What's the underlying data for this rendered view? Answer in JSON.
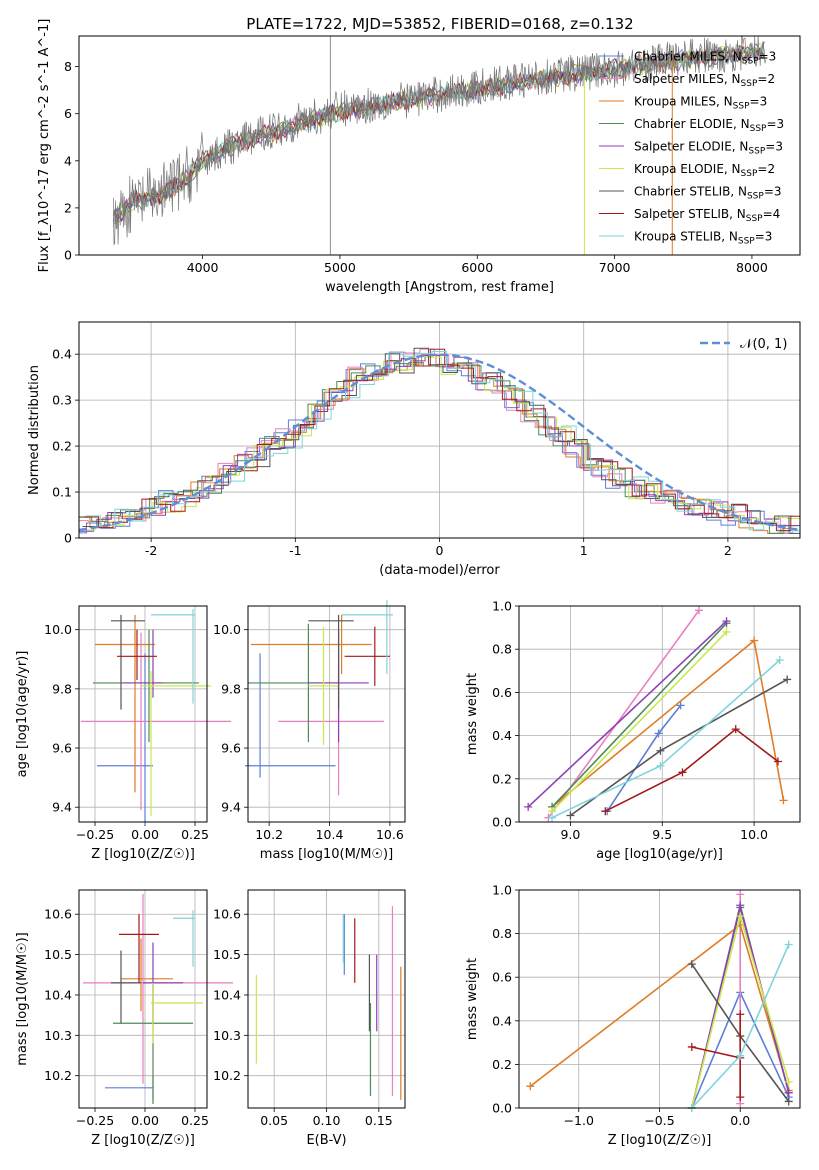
{
  "title": "PLATE=1722, MJD=53852, FIBERID=0168, z=0.132",
  "models": [
    {
      "name": "Chabrier MILES",
      "nssp": "3",
      "color": "#5b7fd9"
    },
    {
      "name": "Salpeter MILES",
      "nssp": "2",
      "color": "#e87fbf"
    },
    {
      "name": "Kroupa MILES",
      "nssp": "3",
      "color": "#e07b26"
    },
    {
      "name": "Chabrier ELODIE",
      "nssp": "3",
      "color": "#4f8a55"
    },
    {
      "name": "Salpeter ELODIE",
      "nssp": "3",
      "color": "#8e3fb8"
    },
    {
      "name": "Kroupa ELODIE",
      "nssp": "2",
      "color": "#c8e84e"
    },
    {
      "name": "Chabrier STELIB",
      "nssp": "3",
      "color": "#555555"
    },
    {
      "name": "Salpeter STELIB",
      "nssp": "4",
      "color": "#a31a1a"
    },
    {
      "name": "Kroupa STELIB",
      "nssp": "3",
      "color": "#7fd4dc"
    }
  ],
  "chart_data": [
    {
      "id": "spectrum",
      "type": "line",
      "xlabel": "wavelength [Angstrom, rest frame]",
      "ylabel": "Flux [f_λ10^-17 erg cm^-2 s^-1 A^-1]",
      "xlim": [
        3100,
        8350
      ],
      "ylim": [
        0,
        9.3
      ],
      "xticks": [
        4000,
        5000,
        6000,
        7000,
        8000
      ],
      "yticks": [
        0,
        2,
        4,
        6,
        8
      ],
      "grid": false,
      "legend": "top-right",
      "x": [
        3350,
        3500,
        3700,
        3900,
        4000,
        4200,
        4500,
        5000,
        5500,
        6000,
        6500,
        7000,
        7500,
        8000,
        8100
      ],
      "data_flux": [
        1.6,
        2.2,
        2.6,
        3.4,
        4.0,
        4.6,
        5.3,
        6.2,
        6.6,
        7.1,
        7.6,
        7.9,
        8.4,
        8.6,
        8.8
      ],
      "model_flux": [
        1.6,
        2.3,
        2.5,
        3.3,
        4.0,
        4.6,
        5.2,
        6.1,
        6.6,
        7.0,
        7.5,
        7.9,
        8.3,
        8.6,
        8.7
      ]
    },
    {
      "id": "residual-histogram",
      "type": "histogram",
      "xlabel": "(data-model)/error",
      "ylabel": "Normed distribution",
      "xlim": [
        -2.5,
        2.5
      ],
      "ylim": [
        0,
        0.47
      ],
      "xticks": [
        -2,
        -1,
        0,
        1,
        2
      ],
      "yticks": [
        0.0,
        0.1,
        0.2,
        0.3,
        0.4
      ],
      "grid": true,
      "legend": "top-right",
      "reference_curve": "𝒩(0, 1)",
      "bins_start": -2.5,
      "bin_width": 0.1,
      "heights": [
        0.03,
        0.03,
        0.04,
        0.05,
        0.06,
        0.07,
        0.08,
        0.09,
        0.11,
        0.12,
        0.14,
        0.16,
        0.18,
        0.2,
        0.22,
        0.24,
        0.27,
        0.3,
        0.32,
        0.35,
        0.36,
        0.38,
        0.38,
        0.39,
        0.39,
        0.38,
        0.37,
        0.36,
        0.34,
        0.32,
        0.3,
        0.27,
        0.24,
        0.22,
        0.19,
        0.17,
        0.15,
        0.13,
        0.11,
        0.1,
        0.09,
        0.08,
        0.07,
        0.06,
        0.06,
        0.05,
        0.04,
        0.04,
        0.03,
        0.03
      ]
    },
    {
      "id": "age-vs-z",
      "type": "scatter",
      "xlabel": "Z [log10(Z/Z☉)]",
      "ylabel": "age [log10(age/yr)]",
      "xlim": [
        -0.33,
        0.31
      ],
      "ylim": [
        9.35,
        10.08
      ],
      "xticks": [
        -0.25,
        0.0,
        0.25
      ],
      "xticklabels": [
        "−0.25",
        "0.00",
        "0.25"
      ],
      "yticks": [
        9.4,
        9.6,
        9.8,
        10.0
      ],
      "yticklabels": [
        "9.4",
        "9.6",
        "9.8",
        "10.0"
      ],
      "grid": true,
      "points": [
        {
          "x": 0.0,
          "y": 9.54,
          "xerr": [
            0.24,
            0.04
          ],
          "yerr": [
            0.2,
            0.38
          ]
        },
        {
          "x": -0.02,
          "y": 9.69,
          "xerr": [
            0.3,
            0.45
          ],
          "yerr": [
            0.3,
            0.3
          ]
        },
        {
          "x": -0.05,
          "y": 9.95,
          "xerr": [
            0.2,
            0.1
          ],
          "yerr": [
            0.5,
            0.1
          ]
        },
        {
          "x": 0.02,
          "y": 9.82,
          "xerr": [
            0.28,
            0.25
          ],
          "yerr": [
            0.2,
            0.18
          ]
        },
        {
          "x": 0.04,
          "y": 9.82,
          "xerr": [
            0.15,
            0.05
          ],
          "yerr": [
            0.05,
            0.18
          ]
        },
        {
          "x": 0.03,
          "y": 9.81,
          "xerr": [
            0.05,
            0.3
          ],
          "yerr": [
            0.44,
            0.05
          ]
        },
        {
          "x": -0.12,
          "y": 10.03,
          "xerr": [
            0.05,
            0.12
          ],
          "yerr": [
            0.3,
            0.02
          ]
        },
        {
          "x": -0.04,
          "y": 9.91,
          "xerr": [
            0.1,
            0.1
          ],
          "yerr": [
            0.08,
            0.09
          ]
        },
        {
          "x": 0.24,
          "y": 10.05,
          "xerr": [
            0.21,
            0.01
          ],
          "yerr": [
            0.3,
            0.02
          ]
        }
      ]
    },
    {
      "id": "age-vs-mass",
      "type": "scatter",
      "xlabel": "mass [log10(M/M☉)]",
      "ylabel": "",
      "xlim": [
        10.13,
        10.65
      ],
      "ylim": [
        9.35,
        10.08
      ],
      "xticks": [
        10.2,
        10.4,
        10.6
      ],
      "xticklabels": [
        "10.2",
        "10.4",
        "10.6"
      ],
      "yticks": [
        9.4,
        9.6,
        9.8,
        10.0
      ],
      "yticklabels": [
        "9.4",
        "9.6",
        "9.8",
        "10.0"
      ],
      "grid": true,
      "points": [
        {
          "x": 10.17,
          "y": 9.54,
          "xerr": [
            0.05,
            0.25
          ],
          "yerr": [
            0.04,
            0.38
          ]
        },
        {
          "x": 10.43,
          "y": 9.69,
          "xerr": [
            0.2,
            0.15
          ],
          "yerr": [
            0.25,
            0.2
          ]
        },
        {
          "x": 10.44,
          "y": 9.95,
          "xerr": [
            0.3,
            0.1
          ],
          "yerr": [
            0.1,
            0.1
          ]
        },
        {
          "x": 10.33,
          "y": 9.82,
          "xerr": [
            0.2,
            0.1
          ],
          "yerr": [
            0.2,
            0.2
          ]
        },
        {
          "x": 10.43,
          "y": 9.82,
          "xerr": [
            0.1,
            0.1
          ],
          "yerr": [
            0.2,
            0.18
          ]
        },
        {
          "x": 10.38,
          "y": 9.81,
          "xerr": [
            0.05,
            0.05
          ],
          "yerr": [
            0.2,
            0.2
          ]
        },
        {
          "x": 10.43,
          "y": 10.03,
          "xerr": [
            0.1,
            0.05
          ],
          "yerr": [
            0.3,
            0.02
          ]
        },
        {
          "x": 10.55,
          "y": 9.91,
          "xerr": [
            0.1,
            0.05
          ],
          "yerr": [
            0.1,
            0.1
          ]
        },
        {
          "x": 10.59,
          "y": 10.05,
          "xerr": [
            0.15,
            0.02
          ],
          "yerr": [
            0.2,
            0.05
          ]
        }
      ]
    },
    {
      "id": "mass-weight-vs-age",
      "type": "line",
      "xlabel": "age [log10(age/yr)]",
      "ylabel": "mass weight",
      "xlim": [
        8.72,
        10.25
      ],
      "ylim": [
        0,
        1
      ],
      "xticks": [
        9.0,
        9.5,
        10.0
      ],
      "xticklabels": [
        "9.0",
        "9.5",
        "10.0"
      ],
      "yticks": [
        0.0,
        0.2,
        0.4,
        0.6,
        0.8,
        1.0
      ],
      "yticklabels": [
        "0.0",
        "0.2",
        "0.4",
        "0.6",
        "0.8",
        "1.0"
      ],
      "grid": true,
      "series": [
        {
          "model": 0,
          "x": [
            9.2,
            9.48,
            9.6
          ],
          "y": [
            0.05,
            0.41,
            0.54
          ]
        },
        {
          "model": 1,
          "x": [
            8.88,
            9.7
          ],
          "y": [
            0.02,
            0.98
          ]
        },
        {
          "model": 2,
          "x": [
            8.9,
            10.0,
            10.16
          ],
          "y": [
            0.07,
            0.84,
            0.1
          ]
        },
        {
          "model": 3,
          "x": [
            8.9,
            9.85
          ],
          "y": [
            0.07,
            0.92
          ]
        },
        {
          "model": 4,
          "x": [
            8.77,
            9.85
          ],
          "y": [
            0.07,
            0.93
          ]
        },
        {
          "model": 5,
          "x": [
            8.9,
            9.85
          ],
          "y": [
            0.05,
            0.88
          ]
        },
        {
          "model": 6,
          "x": [
            9.0,
            9.49,
            10.18
          ],
          "y": [
            0.03,
            0.33,
            0.66
          ]
        },
        {
          "model": 7,
          "x": [
            9.19,
            9.61,
            9.9,
            10.13
          ],
          "y": [
            0.05,
            0.23,
            0.43,
            0.28
          ]
        },
        {
          "model": 8,
          "x": [
            8.9,
            9.49,
            10.14
          ],
          "y": [
            0.02,
            0.26,
            0.75
          ]
        }
      ]
    },
    {
      "id": "mass-vs-z",
      "type": "scatter",
      "xlabel": "Z [log10(Z/Z☉)]",
      "ylabel": "mass [log10(M/M☉)]",
      "xlim": [
        -0.33,
        0.31
      ],
      "ylim": [
        10.12,
        10.66
      ],
      "xticks": [
        -0.25,
        0.0,
        0.25
      ],
      "xticklabels": [
        "−0.25",
        "0.00",
        "0.25"
      ],
      "yticks": [
        10.2,
        10.3,
        10.4,
        10.5,
        10.6
      ],
      "yticklabels": [
        "10.2",
        "10.3",
        "10.4",
        "10.5",
        "10.6"
      ],
      "grid": true,
      "points": [
        {
          "x": 0.04,
          "y": 10.17,
          "xerr": [
            0.24,
            0.0
          ],
          "yerr": [
            0.03,
            0.03
          ]
        },
        {
          "x": -0.01,
          "y": 10.43,
          "xerr": [
            0.3,
            0.45
          ],
          "yerr": [
            0.25,
            0.22
          ]
        },
        {
          "x": -0.02,
          "y": 10.44,
          "xerr": [
            0.1,
            0.16
          ],
          "yerr": [
            0.08,
            0.1
          ]
        },
        {
          "x": 0.04,
          "y": 10.33,
          "xerr": [
            0.2,
            0.2
          ],
          "yerr": [
            0.2,
            0.1
          ]
        },
        {
          "x": 0.04,
          "y": 10.43,
          "xerr": [
            0.05,
            0.15
          ],
          "yerr": [
            0.1,
            0.1
          ]
        },
        {
          "x": 0.04,
          "y": 10.38,
          "xerr": [
            0.01,
            0.25
          ],
          "yerr": [
            0.1,
            0.05
          ]
        },
        {
          "x": -0.12,
          "y": 10.43,
          "xerr": [
            0.05,
            0.1
          ],
          "yerr": [
            0.1,
            0.08
          ]
        },
        {
          "x": -0.03,
          "y": 10.55,
          "xerr": [
            0.1,
            0.1
          ],
          "yerr": [
            0.12,
            0.05
          ]
        },
        {
          "x": 0.24,
          "y": 10.59,
          "xerr": [
            0.1,
            0.01
          ],
          "yerr": [
            0.12,
            0.02
          ]
        }
      ]
    },
    {
      "id": "mass-vs-ebv",
      "type": "scatter",
      "xlabel": "E(B-V)",
      "ylabel": "",
      "xlim": [
        0.025,
        0.175
      ],
      "ylim": [
        10.12,
        10.66
      ],
      "xticks": [
        0.05,
        0.1,
        0.15
      ],
      "xticklabels": [
        "0.05",
        "0.10",
        "0.15"
      ],
      "yticks": [
        10.2,
        10.3,
        10.4,
        10.5,
        10.6
      ],
      "yticklabels": [
        "10.2",
        "10.3",
        "10.4",
        "10.5",
        "10.6"
      ],
      "grid": true,
      "points": [
        {
          "x": 0.117,
          "y": 10.47,
          "xerr": [
            0,
            0
          ],
          "yerr": [
            0.02,
            0.13
          ]
        },
        {
          "x": 0.163,
          "y": 10.43,
          "xerr": [
            0,
            0
          ],
          "yerr": [
            0.28,
            0.19
          ]
        },
        {
          "x": 0.171,
          "y": 10.42,
          "xerr": [
            0,
            0
          ],
          "yerr": [
            0.28,
            0.05
          ]
        },
        {
          "x": 0.142,
          "y": 10.33,
          "xerr": [
            0,
            0
          ],
          "yerr": [
            0.18,
            0.05
          ]
        },
        {
          "x": 0.148,
          "y": 10.43,
          "xerr": [
            0,
            0
          ],
          "yerr": [
            0.12,
            0.07
          ]
        },
        {
          "x": 0.033,
          "y": 10.34,
          "xerr": [
            0,
            0
          ],
          "yerr": [
            0.11,
            0.11
          ]
        },
        {
          "x": 0.141,
          "y": 10.43,
          "xerr": [
            0,
            0
          ],
          "yerr": [
            0.12,
            0.07
          ]
        },
        {
          "x": 0.127,
          "y": 10.51,
          "xerr": [
            0,
            0
          ],
          "yerr": [
            0.08,
            0.08
          ]
        },
        {
          "x": 0.116,
          "y": 10.56,
          "xerr": [
            0,
            0
          ],
          "yerr": [
            0.08,
            0.04
          ]
        }
      ]
    },
    {
      "id": "mass-weight-vs-z",
      "type": "line",
      "xlabel": "Z [log10(Z/Z☉)]",
      "ylabel": "mass weight",
      "xlim": [
        -1.37,
        0.37
      ],
      "ylim": [
        0,
        1
      ],
      "xticks": [
        -1.0,
        -0.5,
        0.0
      ],
      "xticklabels": [
        "−1.0",
        "−0.5",
        "0.0"
      ],
      "yticks": [
        0.0,
        0.2,
        0.4,
        0.6,
        0.8,
        1.0
      ],
      "yticklabels": [
        "0.0",
        "0.2",
        "0.4",
        "0.6",
        "0.8",
        "1.0"
      ],
      "grid": true,
      "series": [
        {
          "model": 0,
          "x": [
            -0.3,
            0.0,
            0.3
          ],
          "y": [
            0.0,
            0.53,
            0.05
          ]
        },
        {
          "model": 1,
          "x": [
            0.0,
            0.0
          ],
          "y": [
            0.02,
            0.98
          ]
        },
        {
          "model": 2,
          "x": [
            -1.3,
            0.0,
            0.3
          ],
          "y": [
            0.1,
            0.84,
            0.08
          ]
        },
        {
          "model": 3,
          "x": [
            -0.3,
            0.0,
            0.3
          ],
          "y": [
            0.0,
            0.92,
            0.07
          ]
        },
        {
          "model": 4,
          "x": [
            -0.3,
            0.0,
            0.3
          ],
          "y": [
            0.0,
            0.93,
            0.07
          ]
        },
        {
          "model": 5,
          "x": [
            -0.3,
            0.0,
            0.3
          ],
          "y": [
            0.0,
            0.88,
            0.12
          ]
        },
        {
          "model": 6,
          "x": [
            -0.3,
            0.0,
            0.3
          ],
          "y": [
            0.66,
            0.33,
            0.03
          ]
        },
        {
          "model": 7,
          "x": [
            -0.3,
            0.0,
            0.0,
            0.0
          ],
          "y": [
            0.28,
            0.23,
            0.43,
            0.05
          ]
        },
        {
          "model": 8,
          "x": [
            -0.3,
            0.0,
            0.3
          ],
          "y": [
            0.0,
            0.24,
            0.75
          ]
        }
      ]
    }
  ]
}
